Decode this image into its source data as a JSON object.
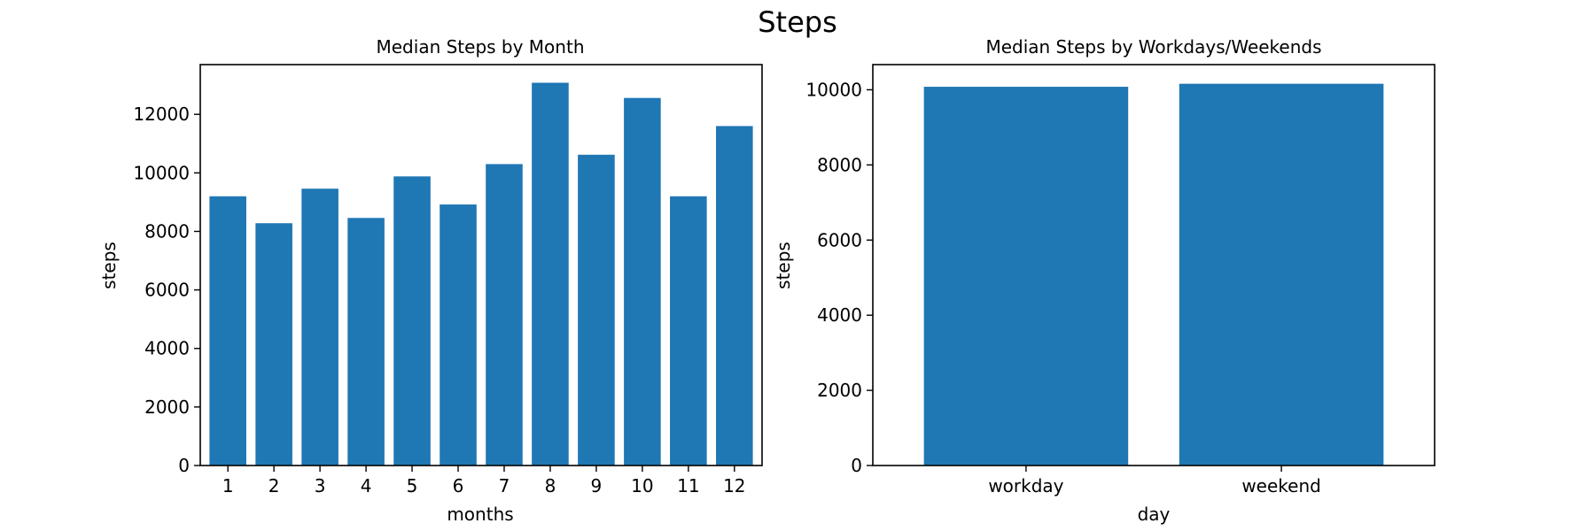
{
  "figure": {
    "title": "Steps"
  },
  "chart_data": [
    {
      "type": "bar",
      "title": "Median Steps by Month",
      "xlabel": "months",
      "ylabel": "steps",
      "categories": [
        "1",
        "2",
        "3",
        "4",
        "5",
        "6",
        "7",
        "8",
        "9",
        "10",
        "11",
        "12"
      ],
      "values": [
        9200,
        8280,
        9460,
        8460,
        9880,
        8920,
        10300,
        13080,
        10620,
        12560,
        9200,
        11600
      ],
      "ylim": [
        0,
        13700
      ],
      "yticks": [
        0,
        2000,
        4000,
        6000,
        8000,
        10000,
        12000
      ],
      "grid": false,
      "color": "#1f77b4"
    },
    {
      "type": "bar",
      "title": "Median Steps by Workdays/Weekends",
      "xlabel": "day",
      "ylabel": "steps",
      "categories": [
        "workday",
        "weekend"
      ],
      "values": [
        10080,
        10160
      ],
      "ylim": [
        0,
        10670
      ],
      "yticks": [
        0,
        2000,
        4000,
        6000,
        8000,
        10000
      ],
      "grid": false,
      "color": "#1f77b4"
    }
  ]
}
